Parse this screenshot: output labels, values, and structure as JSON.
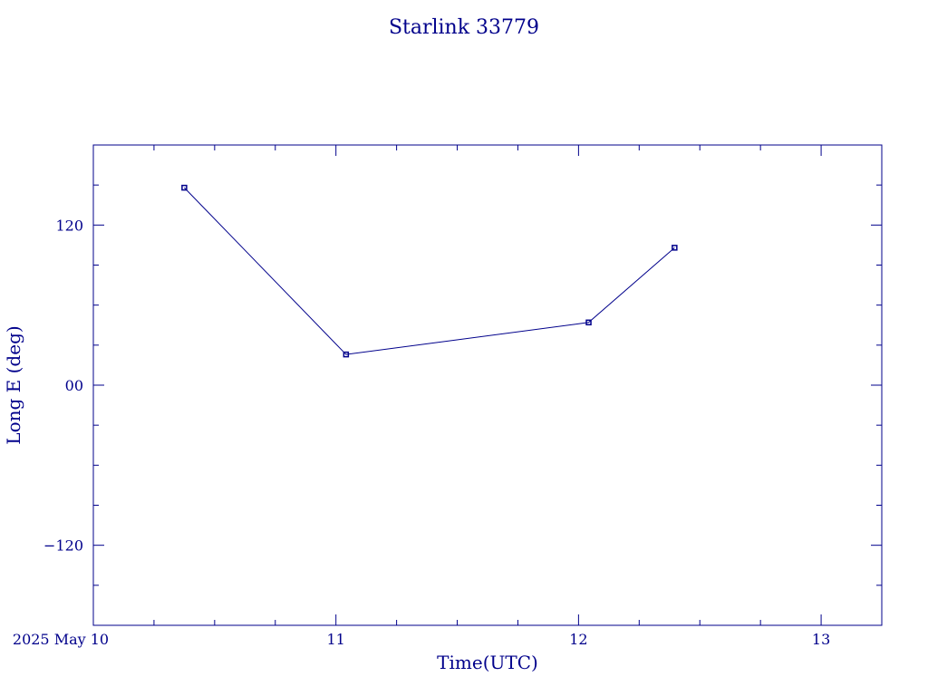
{
  "chart_data": {
    "type": "line",
    "title": "Starlink 33779",
    "xlabel": "Time(UTC)",
    "ylabel": "Long E (deg)",
    "x_ticks": [
      "2025 May 10",
      "11",
      "12",
      "13"
    ],
    "y_ticks": [
      "−120",
      "00",
      "120"
    ],
    "x_range": [
      "2025-05-10T00:00",
      "2025-05-13T06:00"
    ],
    "ylim": [
      -180,
      180
    ],
    "grid": false,
    "series": [
      {
        "x": [
          "2025-05-10T09:00",
          "2025-05-11T01:00",
          "2025-05-12T01:00",
          "2025-05-12T09:30"
        ],
        "y": [
          148,
          23,
          47,
          103
        ]
      }
    ],
    "colors": {
      "axis": "#00008b",
      "line": "#00008b",
      "text": "#00008b"
    }
  }
}
